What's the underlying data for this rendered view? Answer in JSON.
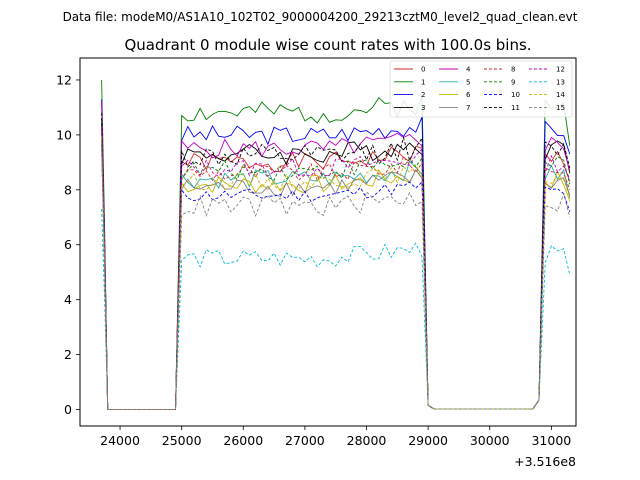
{
  "figure": {
    "suptitle": "Data file: modeM0/AS1A10_102T02_9000004200_29213cztM0_level2_quad_clean.evt",
    "offset_label": "+3.516e8"
  },
  "chart_data": {
    "type": "line",
    "title": "Quadrant 0 module wise count rates with 100.0s bins.",
    "xlabel": "",
    "ylabel": "",
    "x_offset": 351600000,
    "xlim": [
      23350,
      31400
    ],
    "ylim": [
      -0.6,
      12.8
    ],
    "x_ticks": [
      24000,
      25000,
      26000,
      27000,
      28000,
      29000,
      30000,
      31000
    ],
    "y_ticks": [
      0,
      2,
      4,
      6,
      8,
      10,
      12
    ],
    "legend_position": "top-right",
    "grid": false,
    "segments": {
      "seg1": {
        "start": 23700,
        "end": 23800
      },
      "gap1": {
        "start": 23800,
        "end": 24900
      },
      "seg2": {
        "start": 24900,
        "end": 28950
      },
      "gap2": {
        "start": 29000,
        "end": 30800
      },
      "seg3": {
        "start": 30800,
        "end": 31300
      }
    },
    "series": [
      {
        "name": "0",
        "color": "#d62728",
        "dash": false,
        "start": 10.4,
        "level": 9.0,
        "wiggle": 0.35,
        "end": 8.3
      },
      {
        "name": "1",
        "color": "#008000",
        "dash": false,
        "start": 12.0,
        "level": 10.8,
        "wiggle": 0.4,
        "end": 9.6
      },
      {
        "name": "2",
        "color": "#0000ff",
        "dash": false,
        "start": 11.3,
        "level": 10.0,
        "wiggle": 0.35,
        "end": 9.3
      },
      {
        "name": "3",
        "color": "#000000",
        "dash": false,
        "start": 10.6,
        "level": 9.3,
        "wiggle": 0.4,
        "end": 8.6
      },
      {
        "name": "4",
        "color": "#c000c0",
        "dash": false,
        "start": 11.2,
        "level": 9.5,
        "wiggle": 0.35,
        "end": 8.7
      },
      {
        "name": "5",
        "color": "#20b2aa",
        "dash": false,
        "start": 9.8,
        "level": 8.4,
        "wiggle": 0.35,
        "end": 7.7
      },
      {
        "name": "6",
        "color": "#c8b400",
        "dash": false,
        "start": 9.6,
        "level": 8.2,
        "wiggle": 0.35,
        "end": 7.6
      },
      {
        "name": "7",
        "color": "#808080",
        "dash": false,
        "start": 9.9,
        "level": 8.1,
        "wiggle": 0.35,
        "end": 7.8
      },
      {
        "name": "8",
        "color": "#d62728",
        "dash": true,
        "start": 10.1,
        "level": 8.6,
        "wiggle": 0.35,
        "end": 8.0
      },
      {
        "name": "9",
        "color": "#008000",
        "dash": true,
        "start": 10.5,
        "level": 8.7,
        "wiggle": 0.35,
        "end": 8.2
      },
      {
        "name": "10",
        "color": "#0000ff",
        "dash": true,
        "start": 9.7,
        "level": 7.8,
        "wiggle": 0.25,
        "end": 7.2
      },
      {
        "name": "11",
        "color": "#000000",
        "dash": true,
        "start": 10.8,
        "level": 9.2,
        "wiggle": 0.45,
        "end": 8.8
      },
      {
        "name": "12",
        "color": "#c000c0",
        "dash": true,
        "start": 10.3,
        "level": 8.8,
        "wiggle": 0.35,
        "end": 8.4
      },
      {
        "name": "13",
        "color": "#00bcd4",
        "dash": true,
        "start": 7.3,
        "level": 5.5,
        "wiggle": 0.35,
        "end": 4.9
      },
      {
        "name": "14",
        "color": "#c8b400",
        "dash": true,
        "start": 9.9,
        "level": 8.3,
        "wiggle": 0.3,
        "end": 7.7
      },
      {
        "name": "15",
        "color": "#808080",
        "dash": true,
        "start": 9.5,
        "level": 7.4,
        "wiggle": 0.4,
        "end": 7.0
      }
    ]
  }
}
